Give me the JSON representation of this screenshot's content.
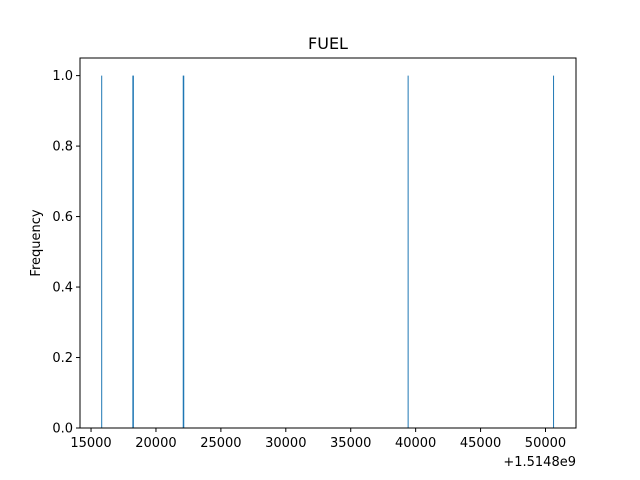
{
  "chart_data": {
    "type": "bar",
    "title": "FUEL",
    "xlabel": "",
    "ylabel": "Frequency",
    "x_offset_label": "+1.5148e9",
    "xlim": [
      14150,
      52350
    ],
    "ylim": [
      0,
      1.05
    ],
    "x_ticks": [
      15000,
      20000,
      25000,
      30000,
      35000,
      40000,
      45000,
      50000
    ],
    "x_tick_labels": [
      "15000",
      "20000",
      "25000",
      "30000",
      "35000",
      "40000",
      "45000",
      "50000"
    ],
    "y_ticks": [
      0.0,
      0.2,
      0.4,
      0.6,
      0.8,
      1.0
    ],
    "y_tick_labels": [
      "0.0",
      "0.2",
      "0.4",
      "0.6",
      "0.8",
      "1.0"
    ],
    "bin_width": 35,
    "bars": [
      {
        "x": 15800,
        "value": 1
      },
      {
        "x": 18200,
        "value": 1
      },
      {
        "x": 18240,
        "value": 1
      },
      {
        "x": 22080,
        "value": 1
      },
      {
        "x": 22120,
        "value": 1
      },
      {
        "x": 39400,
        "value": 1
      },
      {
        "x": 50600,
        "value": 1
      }
    ],
    "bar_color": "#1f77b4",
    "grid": false,
    "legend": "none"
  }
}
